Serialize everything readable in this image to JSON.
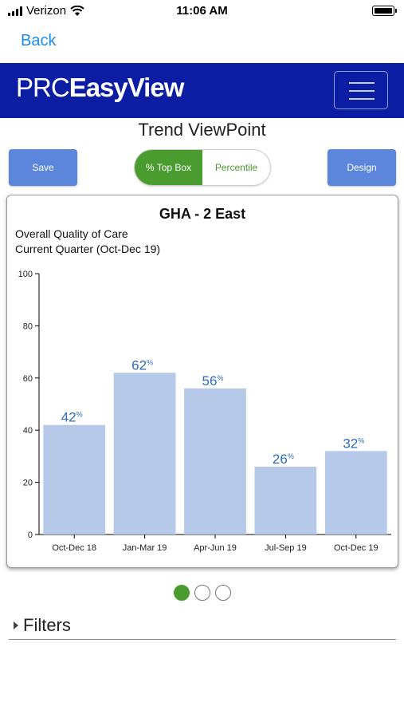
{
  "status_bar": {
    "carrier": "Verizon",
    "time": "11:06 AM"
  },
  "nav": {
    "back_label": "Back"
  },
  "brand": {
    "logo_part1": "PRC",
    "logo_part2": "EasyView"
  },
  "page": {
    "title": "Trend ViewPoint"
  },
  "toolbar": {
    "save_label": "Save",
    "design_label": "Design",
    "segments": [
      {
        "label": "% Top Box",
        "selected": true
      },
      {
        "label": "Percentile",
        "selected": false
      }
    ]
  },
  "card": {
    "title": "GHA - 2 East",
    "subtitle_line1": "Overall Quality of Care",
    "subtitle_line2": "Current Quarter (Oct-Dec 19)"
  },
  "chart_data": {
    "type": "bar",
    "categories": [
      "Oct-Dec 18",
      "Jan-Mar 19",
      "Apr-Jun 19",
      "Jul-Sep 19",
      "Oct-Dec 19"
    ],
    "values": [
      42,
      62,
      56,
      26,
      32
    ],
    "value_suffix": "%",
    "ylim": [
      0,
      100
    ],
    "yticks": [
      0,
      20,
      40,
      60,
      80,
      100
    ],
    "bar_color": "#b7c9e8",
    "label_color": "#2f6bb8"
  },
  "pager": {
    "page_count": 3,
    "active_index": 0
  },
  "filters": {
    "label": "Filters"
  },
  "colors": {
    "brand": "#0a1da3",
    "link": "#1a8cf0",
    "accent_green": "#4a9c2f",
    "button_blue": "#5b86dc"
  }
}
